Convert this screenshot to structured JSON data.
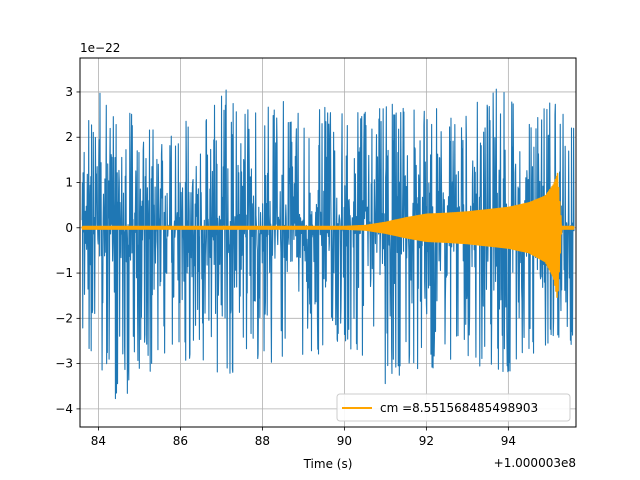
{
  "chart_data": {
    "type": "line",
    "title": "",
    "xlabel": "Time (s)",
    "ylabel": "",
    "x_offset_label": "+1.000003e8",
    "y_scale_label": "1e−22",
    "xlim": [
      83.55,
      95.65
    ],
    "ylim": [
      -4.4,
      3.75
    ],
    "x_ticks": [
      84,
      86,
      88,
      90,
      92,
      94
    ],
    "x_tick_labels": [
      "84",
      "86",
      "88",
      "90",
      "92",
      "94"
    ],
    "y_ticks": [
      -4,
      -3,
      -2,
      -1,
      0,
      1,
      2,
      3
    ],
    "y_tick_labels": [
      "−4",
      "−3",
      "−2",
      "−1",
      "0",
      "1",
      "2",
      "3"
    ],
    "grid": true,
    "legend_position": "lower-right",
    "series": [
      {
        "role": "strain noise",
        "color": "#1f77b4",
        "envelope_x": [
          83.6,
          84.0,
          84.5,
          85.0,
          85.5,
          86.0,
          86.5,
          87.0,
          87.5,
          88.0,
          88.5,
          89.0,
          89.5,
          90.0,
          90.5,
          91.0,
          91.5,
          92.0,
          92.5,
          93.0,
          93.5,
          94.0,
          94.5,
          95.0,
          95.6
        ],
        "envelope_max": [
          2.3,
          3.2,
          2.6,
          2.8,
          2.7,
          2.6,
          2.5,
          3.3,
          2.6,
          2.9,
          2.8,
          2.5,
          2.7,
          2.5,
          2.6,
          2.9,
          2.7,
          2.8,
          2.5,
          2.7,
          2.9,
          3.35,
          2.6,
          2.9,
          2.2
        ],
        "envelope_min": [
          -2.9,
          -3.1,
          -4.0,
          -3.3,
          -3.2,
          -2.9,
          -3.1,
          -3.5,
          -3.0,
          -2.9,
          -3.2,
          -2.8,
          -3.0,
          -2.6,
          -2.9,
          -3.6,
          -3.2,
          -3.1,
          -3.3,
          -2.9,
          -3.2,
          -3.4,
          -3.0,
          -2.7,
          -2.6
        ]
      },
      {
        "name": "cm =8.551568485498903",
        "role": "chirp template",
        "color": "#ffa500",
        "envelope_x": [
          83.6,
          90.0,
          90.5,
          91.0,
          91.5,
          92.0,
          92.5,
          93.0,
          93.5,
          94.0,
          94.5,
          94.9,
          95.1,
          95.2,
          95.3,
          95.6
        ],
        "envelope_max": [
          0.03,
          0.03,
          0.05,
          0.12,
          0.22,
          0.3,
          0.32,
          0.35,
          0.4,
          0.45,
          0.55,
          0.7,
          0.95,
          1.2,
          0.03,
          0.03
        ],
        "envelope_min": [
          -0.03,
          -0.03,
          -0.05,
          -0.12,
          -0.22,
          -0.3,
          -0.32,
          -0.35,
          -0.4,
          -0.45,
          -0.55,
          -0.75,
          -1.1,
          -1.6,
          -0.03,
          -0.03
        ]
      }
    ]
  }
}
